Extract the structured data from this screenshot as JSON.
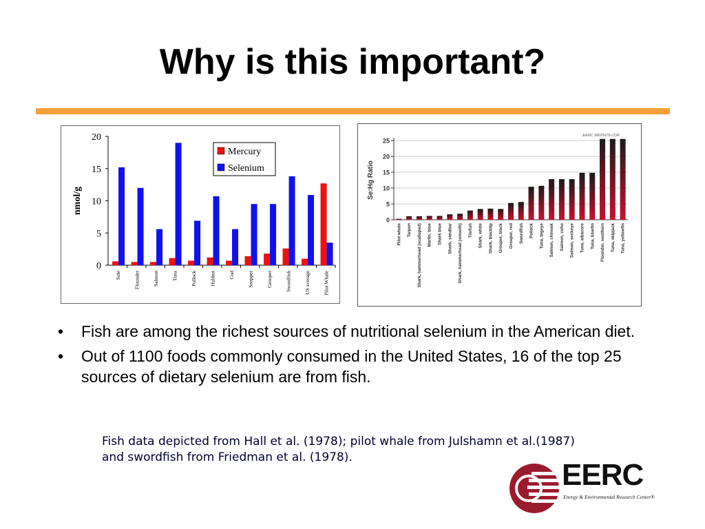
{
  "slide": {
    "title": "Why is this important?",
    "accent_color": "#f4a13a"
  },
  "bullets": [
    "Fish are among the richest sources of nutritional selenium in the American diet.",
    "Out of 1100 foods commonly consumed in the United States, 16 of the top 25 sources of dietary selenium are from fish."
  ],
  "footnote": {
    "line1": "Fish data depicted from Hall et al. (1978); pilot whale from Julshamn et al.(1987)",
    "line2": "and swordfish from Friedman et al. (1978)."
  },
  "logo": {
    "name": "EERC",
    "subtitle": "Energy & Environmental Research Center®",
    "color": "#9b1b2e"
  },
  "chart_data": [
    {
      "type": "bar",
      "title": "",
      "ylabel": "nmol/g",
      "xlabel": "",
      "ylim": [
        0,
        20
      ],
      "yticks": [
        0,
        5,
        10,
        15,
        20
      ],
      "legend_position": "top-right",
      "categories": [
        "Sole",
        "Flounder",
        "Salmon",
        "Tuna",
        "Pollock",
        "Halibut",
        "Cod",
        "Snapper",
        "Grouper",
        "Swordfish",
        "US average",
        "Pilot Whale"
      ],
      "series": [
        {
          "name": "Mercury",
          "color": "#ee1111",
          "values": [
            0.6,
            0.5,
            0.5,
            1.1,
            0.7,
            1.2,
            0.7,
            1.4,
            1.8,
            2.6,
            1.0,
            12.7
          ]
        },
        {
          "name": "Selenium",
          "color": "#1111ee",
          "values": [
            15.2,
            12.0,
            5.6,
            19.0,
            6.9,
            10.7,
            5.6,
            9.5,
            9.5,
            13.8,
            10.9,
            3.5
          ]
        }
      ],
      "grid": false
    },
    {
      "type": "bar",
      "title": "",
      "ylabel": "Se:Hg Ratio",
      "xlabel": "",
      "watermark": "EERC NR25976.CDR",
      "ylim": [
        0,
        25
      ],
      "yticks": [
        0,
        5,
        10,
        15,
        20,
        25
      ],
      "grid": true,
      "categories": [
        "Pilot whale",
        "Tarpon",
        "Shark, hammerhead (scalloped)",
        "Marlin, blue",
        "Shark blue",
        "Shark, sandbar",
        "Shark, hammerhead (smooth)",
        "Tilefish",
        "Shark, white",
        "Shark, blacktip",
        "Grouper, black",
        "Grouper, red",
        "Swordfish",
        "Pollock",
        "Tuna, bigeye",
        "Salmon, chinook",
        "Salmon, coho",
        "Salmon, sockeye",
        "Tuna, albacore",
        "Tuna, bluefin",
        "Flounder, southern",
        "Tuna, skipjack",
        "Tuna, yellowfin"
      ],
      "values": [
        0.3,
        1.1,
        1.1,
        1.2,
        1.2,
        1.7,
        1.9,
        2.9,
        3.4,
        3.5,
        3.4,
        5.3,
        5.6,
        10.4,
        10.7,
        12.8,
        12.8,
        12.8,
        14.8,
        14.8,
        25.5,
        25.5,
        25.5
      ],
      "colors": [
        "#c8102e",
        "#1a1a1a"
      ]
    }
  ]
}
